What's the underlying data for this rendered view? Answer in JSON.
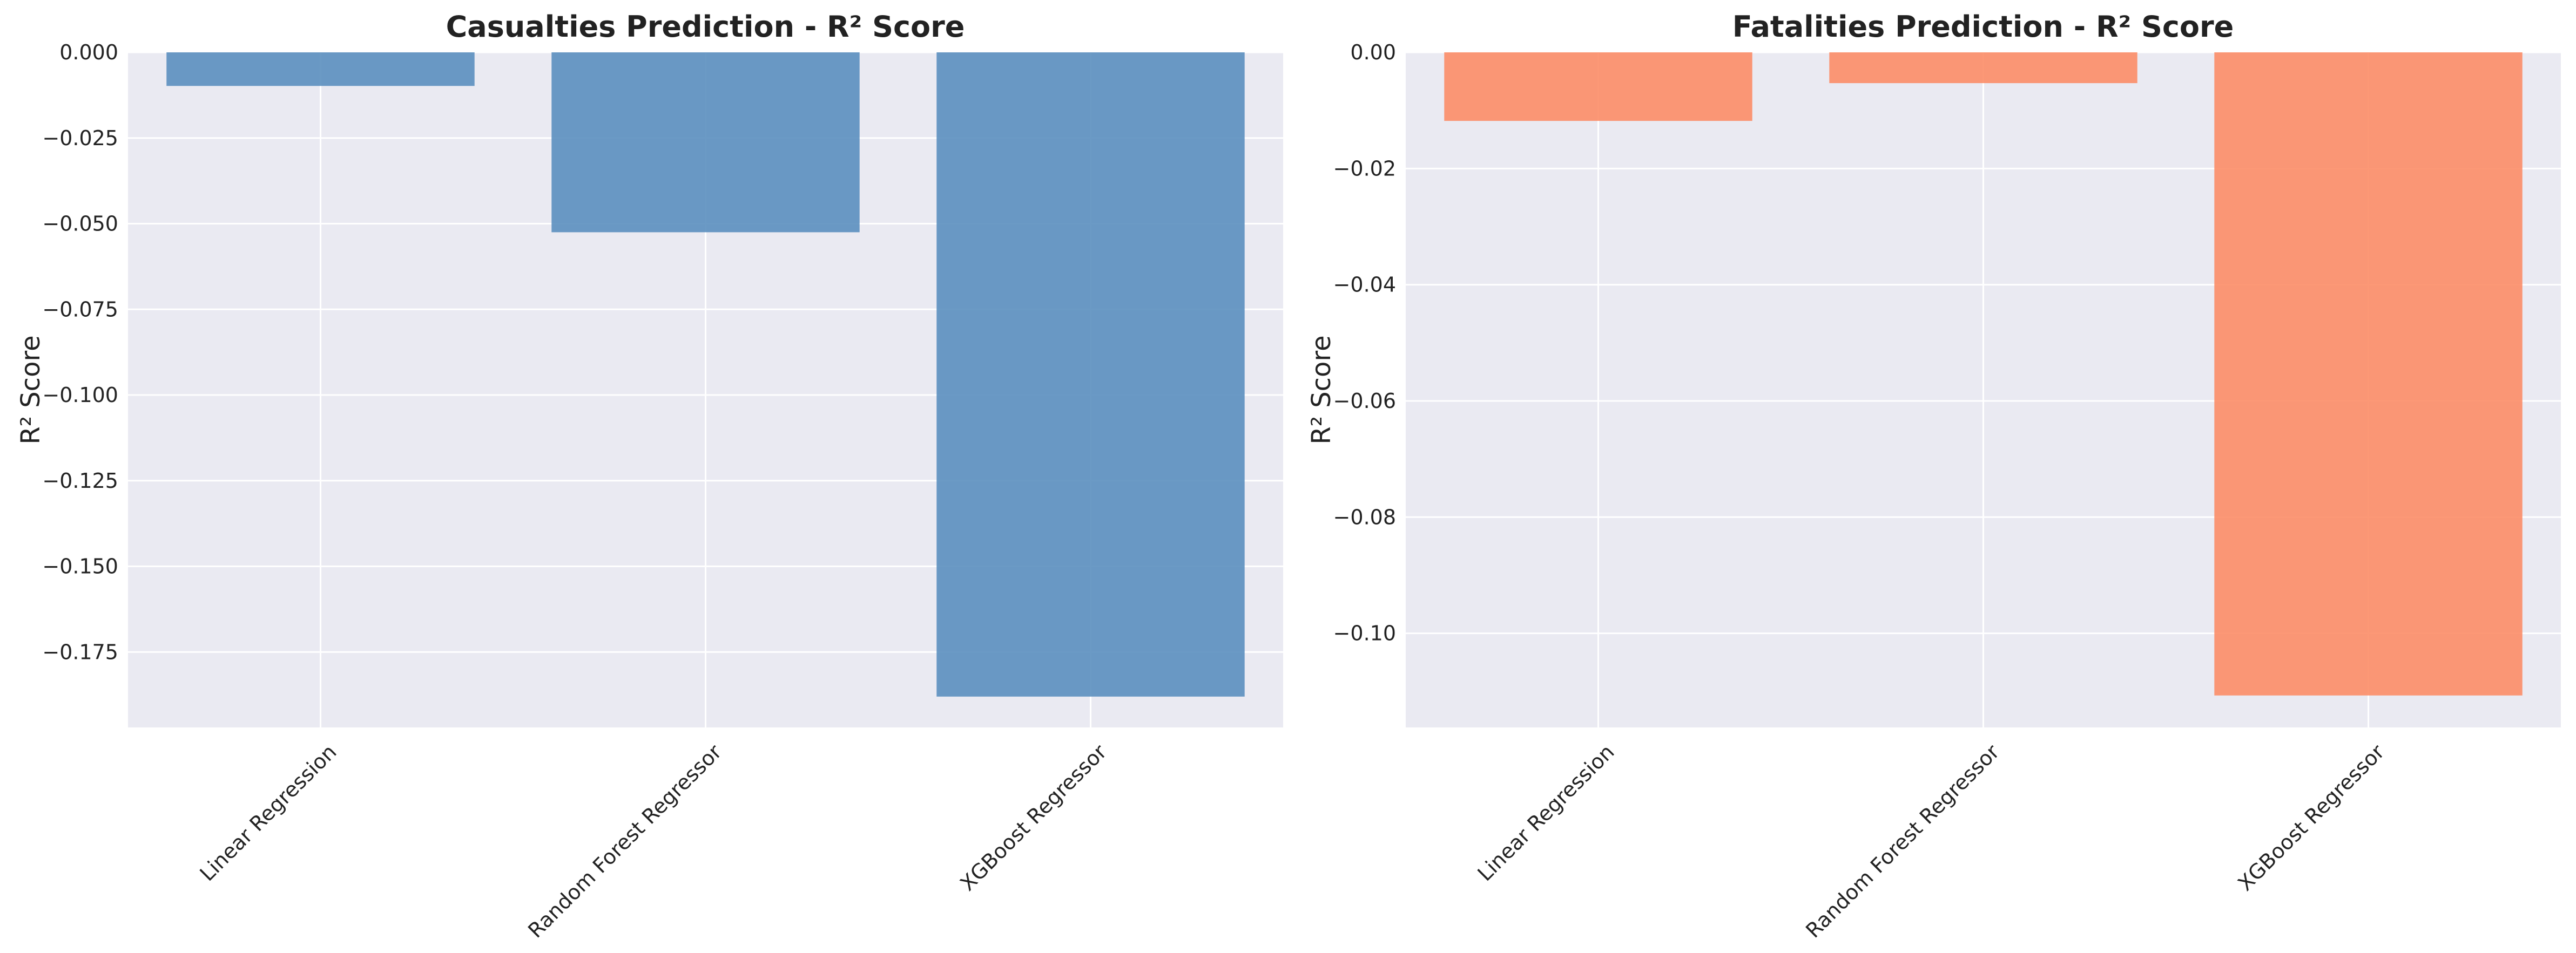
{
  "chart_data": [
    {
      "type": "bar",
      "title": "Casualties Prediction - R² Score",
      "xlabel": "",
      "ylabel": "R² Score",
      "categories": [
        "Linear Regression",
        "Random Forest Regressor",
        "XGBoost Regressor"
      ],
      "values": [
        -0.0098,
        -0.0525,
        -0.188
      ],
      "ylim": [
        -0.197,
        0.0
      ],
      "yticks": [
        0.0,
        -0.025,
        -0.05,
        -0.075,
        -0.1,
        -0.125,
        -0.15,
        -0.175
      ],
      "ytick_labels": [
        "0.000",
        "−0.025",
        "−0.050",
        "−0.075",
        "−0.100",
        "−0.125",
        "−0.150",
        "−0.175"
      ],
      "bar_color": "#5b8fbf",
      "grid": true,
      "background": "#eaeaf2"
    },
    {
      "type": "bar",
      "title": "Fatalities Prediction - R² Score",
      "xlabel": "",
      "ylabel": "R² Score",
      "categories": [
        "Linear Regression",
        "Random Forest Regressor",
        "XGBoost Regressor"
      ],
      "values": [
        -0.0118,
        -0.0053,
        -0.1107
      ],
      "ylim": [
        -0.1162,
        0.0
      ],
      "yticks": [
        0.0,
        -0.02,
        -0.04,
        -0.06,
        -0.08,
        -0.1
      ],
      "ytick_labels": [
        "0.00",
        "−0.02",
        "−0.04",
        "−0.06",
        "−0.08",
        "−0.10"
      ],
      "bar_color": "#fc8d67",
      "grid": true,
      "background": "#eaeaf2"
    }
  ]
}
